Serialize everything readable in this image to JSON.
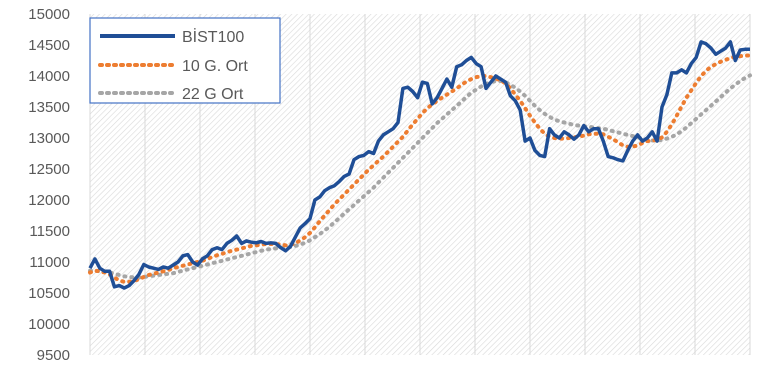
{
  "chart_data": {
    "type": "line",
    "title": "",
    "xlabel": "",
    "ylabel": "",
    "ylim": [
      9500,
      15000
    ],
    "yticks": [
      "15000",
      "14500",
      "14000",
      "13500",
      "13000",
      "12500",
      "12000",
      "11500",
      "11000",
      "10500",
      "10000",
      "9500"
    ],
    "grid": "vertical hatched gridlines",
    "legend_position": "top-left",
    "x": [
      1,
      2,
      3,
      4,
      5,
      6,
      7,
      8,
      9,
      10,
      11,
      12,
      13,
      14,
      15,
      16,
      17,
      18,
      19,
      20,
      21,
      22,
      23,
      24,
      25,
      26,
      27,
      28,
      29,
      30,
      31,
      32,
      33,
      34,
      35,
      36,
      37,
      38,
      39,
      40,
      41,
      42,
      43,
      44,
      45,
      46,
      47,
      48,
      49,
      50,
      51,
      52,
      53,
      54,
      55,
      56,
      57,
      58,
      59,
      60,
      61,
      62,
      63,
      64,
      65,
      66,
      67,
      68,
      69,
      70,
      71,
      72,
      73,
      74,
      75,
      76,
      77,
      78,
      79,
      80,
      81,
      82,
      83,
      84,
      85,
      86,
      87,
      88,
      89,
      90,
      91,
      92,
      93,
      94,
      95,
      96,
      97,
      98,
      99,
      100,
      101,
      102,
      103,
      104,
      105,
      106,
      107,
      108,
      109,
      110,
      111,
      112,
      113,
      114,
      115,
      116,
      117,
      118,
      119,
      120,
      121,
      122,
      123,
      124,
      125,
      126,
      127,
      128,
      129,
      130,
      131,
      132,
      133,
      134,
      135,
      136
    ],
    "series": [
      {
        "name": "BİST100",
        "color": "#1f4e96",
        "style": "solid",
        "values": [
          10900,
          11050,
          10900,
          10850,
          10850,
          10600,
          10620,
          10580,
          10620,
          10700,
          10800,
          10960,
          10920,
          10900,
          10880,
          10920,
          10900,
          10950,
          11000,
          11100,
          11120,
          11000,
          10950,
          11050,
          11100,
          11200,
          11230,
          11200,
          11300,
          11350,
          11420,
          11300,
          11340,
          11320,
          11310,
          11330,
          11300,
          11310,
          11300,
          11230,
          11180,
          11250,
          11400,
          11550,
          11620,
          11700,
          12000,
          12050,
          12150,
          12200,
          12230,
          12300,
          12380,
          12420,
          12650,
          12700,
          12720,
          12780,
          12750,
          12950,
          13050,
          13100,
          13150,
          13250,
          13800,
          13820,
          13750,
          13650,
          13900,
          13880,
          13550,
          13650,
          13800,
          13950,
          13820,
          14150,
          14180,
          14250,
          14300,
          14200,
          14150,
          13800,
          13900,
          14000,
          13950,
          13900,
          13680,
          13600,
          13450,
          12950,
          13000,
          12800,
          12720,
          12700,
          13150,
          13050,
          13000,
          13100,
          13050,
          12980,
          13050,
          13200,
          13100,
          13150,
          13150,
          12950,
          12700,
          12680,
          12650,
          12630,
          12800,
          12950,
          13050,
          12950,
          13000,
          13100,
          12950,
          13500,
          13700,
          14050,
          14050,
          14100,
          14050,
          14200,
          14300,
          14550,
          14520,
          14450,
          14350,
          14400,
          14450,
          14550,
          14250,
          14420,
          14430,
          14430
        ]
      },
      {
        "name": "10 G. Ort",
        "color": "#ed7d31",
        "style": "dotted",
        "values": [
          10830,
          10860,
          10850,
          10830,
          10800,
          10750,
          10700,
          10680,
          10680,
          10700,
          10720,
          10760,
          10790,
          10810,
          10830,
          10850,
          10870,
          10900,
          10920,
          10940,
          10960,
          10980,
          11000,
          11020,
          11050,
          11080,
          11110,
          11130,
          11160,
          11180,
          11200,
          11220,
          11240,
          11260,
          11270,
          11280,
          11290,
          11290,
          11290,
          11280,
          11270,
          11280,
          11300,
          11350,
          11400,
          11470,
          11560,
          11660,
          11750,
          11840,
          11930,
          12010,
          12090,
          12170,
          12250,
          12330,
          12410,
          12490,
          12560,
          12630,
          12700,
          12780,
          12860,
          12940,
          13020,
          13120,
          13220,
          13310,
          13400,
          13480,
          13540,
          13600,
          13650,
          13700,
          13750,
          13800,
          13860,
          13910,
          13950,
          13980,
          14000,
          14000,
          13980,
          13960,
          13930,
          13880,
          13800,
          13700,
          13600,
          13480,
          13360,
          13250,
          13150,
          13070,
          13020,
          13000,
          12990,
          12990,
          13000,
          13010,
          13020,
          13040,
          13060,
          13070,
          13070,
          13060,
          13020,
          12980,
          12930,
          12880,
          12860,
          12860,
          12880,
          12920,
          12950,
          12960,
          12970,
          13010,
          13100,
          13220,
          13360,
          13510,
          13650,
          13770,
          13890,
          14000,
          14080,
          14150,
          14190,
          14230,
          14260,
          14290,
          14310,
          14320,
          14330,
          14330
        ]
      },
      {
        "name": "22 G Ort",
        "color": "#a6a6a6",
        "style": "dotted",
        "values": [
          10860,
          10860,
          10850,
          10840,
          10830,
          10810,
          10790,
          10770,
          10760,
          10750,
          10750,
          10760,
          10770,
          10780,
          10790,
          10800,
          10810,
          10820,
          10840,
          10860,
          10880,
          10900,
          10920,
          10940,
          10960,
          10980,
          11000,
          11020,
          11040,
          11060,
          11080,
          11100,
          11120,
          11140,
          11160,
          11180,
          11200,
          11210,
          11220,
          11230,
          11230,
          11240,
          11260,
          11280,
          11310,
          11350,
          11400,
          11450,
          11510,
          11570,
          11640,
          11710,
          11780,
          11850,
          11920,
          11990,
          12060,
          12130,
          12200,
          12280,
          12360,
          12440,
          12520,
          12600,
          12680,
          12760,
          12840,
          12920,
          13000,
          13080,
          13160,
          13240,
          13310,
          13380,
          13450,
          13520,
          13590,
          13660,
          13730,
          13780,
          13830,
          13870,
          13900,
          13920,
          13920,
          13900,
          13860,
          13810,
          13750,
          13680,
          13600,
          13520,
          13450,
          13390,
          13340,
          13300,
          13270,
          13250,
          13230,
          13210,
          13200,
          13190,
          13180,
          13170,
          13160,
          13150,
          13130,
          13110,
          13090,
          13070,
          13050,
          13030,
          13010,
          12990,
          12970,
          12960,
          12960,
          12970,
          12990,
          13020,
          13060,
          13110,
          13170,
          13240,
          13310,
          13380,
          13450,
          13520,
          13590,
          13660,
          13730,
          13800,
          13860,
          13920,
          13970,
          14010
        ]
      }
    ]
  }
}
